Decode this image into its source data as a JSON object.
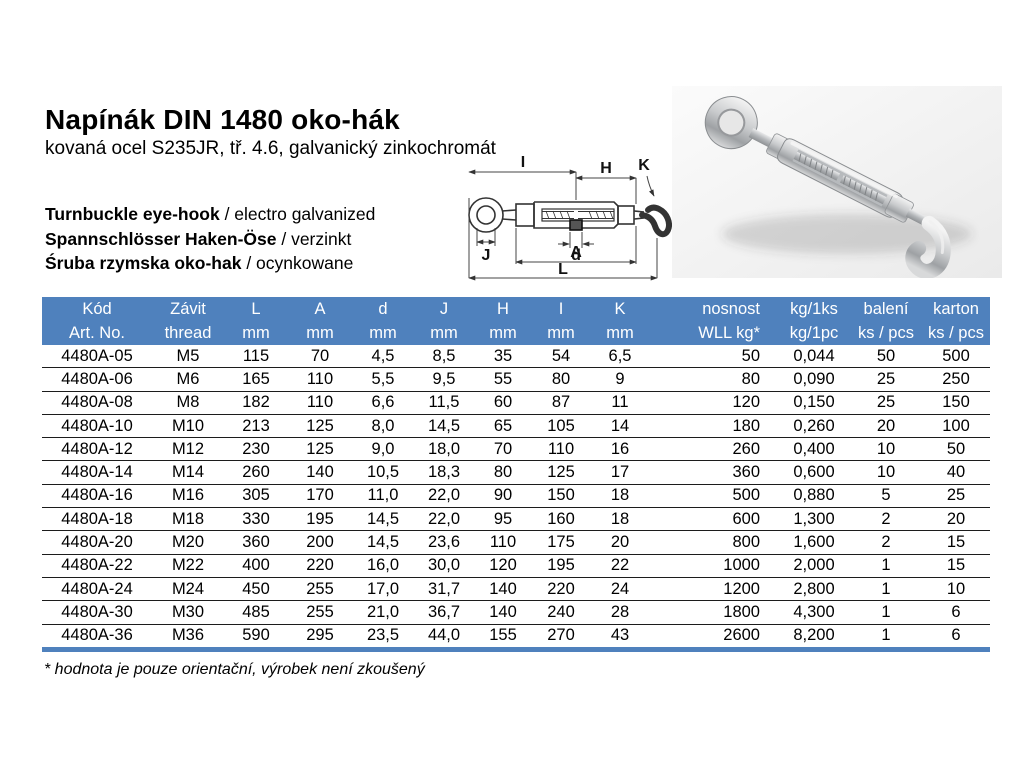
{
  "accent_color": "#4f81bd",
  "header": {
    "title": "Napínák DIN 1480 oko-hák",
    "subtitle": "kovaná ocel S235JR, tř. 4.6, galvanický zinkochromát",
    "translations": [
      {
        "name": "Turnbuckle eye-hook",
        "desc": " / electro galvanized"
      },
      {
        "name": "Spannschlösser Haken-Öse",
        "desc": " / verzinkt"
      },
      {
        "name": "Śruba rzymska oko-hak",
        "desc": " / ocynkowane"
      }
    ]
  },
  "diagram": {
    "labels": {
      "l_i": "I",
      "l_h": "H",
      "l_k": "K",
      "l_j": "J",
      "l_d": "d",
      "l_a": "A",
      "l_l": "L"
    }
  },
  "table": {
    "columns": [
      {
        "line1": "Kód",
        "line2": "Art. No."
      },
      {
        "line1": "Závit",
        "line2": "thread"
      },
      {
        "line1": "L",
        "line2": "mm"
      },
      {
        "line1": "A",
        "line2": "mm"
      },
      {
        "line1": "d",
        "line2": "mm"
      },
      {
        "line1": "J",
        "line2": "mm"
      },
      {
        "line1": "H",
        "line2": "mm"
      },
      {
        "line1": "I",
        "line2": "mm"
      },
      {
        "line1": "K",
        "line2": "mm"
      },
      {
        "line1": "nosnost",
        "line2": "WLL kg*"
      },
      {
        "line1": "kg/1ks",
        "line2": "kg/1pc"
      },
      {
        "line1": "balení",
        "line2": "ks / pcs"
      },
      {
        "line1": "karton",
        "line2": "ks / pcs"
      }
    ],
    "rows": [
      [
        "4480A-05",
        "M5",
        "115",
        "70",
        "4,5",
        "8,5",
        "35",
        "54",
        "6,5",
        "50",
        "0,044",
        "50",
        "500"
      ],
      [
        "4480A-06",
        "M6",
        "165",
        "110",
        "5,5",
        "9,5",
        "55",
        "80",
        "9",
        "80",
        "0,090",
        "25",
        "250"
      ],
      [
        "4480A-08",
        "M8",
        "182",
        "110",
        "6,6",
        "11,5",
        "60",
        "87",
        "11",
        "120",
        "0,150",
        "25",
        "150"
      ],
      [
        "4480A-10",
        "M10",
        "213",
        "125",
        "8,0",
        "14,5",
        "65",
        "105",
        "14",
        "180",
        "0,260",
        "20",
        "100"
      ],
      [
        "4480A-12",
        "M12",
        "230",
        "125",
        "9,0",
        "18,0",
        "70",
        "110",
        "16",
        "260",
        "0,400",
        "10",
        "50"
      ],
      [
        "4480A-14",
        "M14",
        "260",
        "140",
        "10,5",
        "18,3",
        "80",
        "125",
        "17",
        "360",
        "0,600",
        "10",
        "40"
      ],
      [
        "4480A-16",
        "M16",
        "305",
        "170",
        "11,0",
        "22,0",
        "90",
        "150",
        "18",
        "500",
        "0,880",
        "5",
        "25"
      ],
      [
        "4480A-18",
        "M18",
        "330",
        "195",
        "14,5",
        "22,0",
        "95",
        "160",
        "18",
        "600",
        "1,300",
        "2",
        "20"
      ],
      [
        "4480A-20",
        "M20",
        "360",
        "200",
        "14,5",
        "23,6",
        "110",
        "175",
        "20",
        "800",
        "1,600",
        "2",
        "15"
      ],
      [
        "4480A-22",
        "M22",
        "400",
        "220",
        "16,0",
        "30,0",
        "120",
        "195",
        "22",
        "1000",
        "2,000",
        "1",
        "15"
      ],
      [
        "4480A-24",
        "M24",
        "450",
        "255",
        "17,0",
        "31,7",
        "140",
        "220",
        "24",
        "1200",
        "2,800",
        "1",
        "10"
      ],
      [
        "4480A-30",
        "M30",
        "485",
        "255",
        "21,0",
        "36,7",
        "140",
        "240",
        "28",
        "1800",
        "4,300",
        "1",
        "6"
      ],
      [
        "4480A-36",
        "M36",
        "590",
        "295",
        "23,5",
        "44,0",
        "155",
        "270",
        "43",
        "2600",
        "8,200",
        "1",
        "6"
      ]
    ]
  },
  "footer": {
    "note": "* hodnota je pouze orientační, výrobek není zkoušený"
  }
}
